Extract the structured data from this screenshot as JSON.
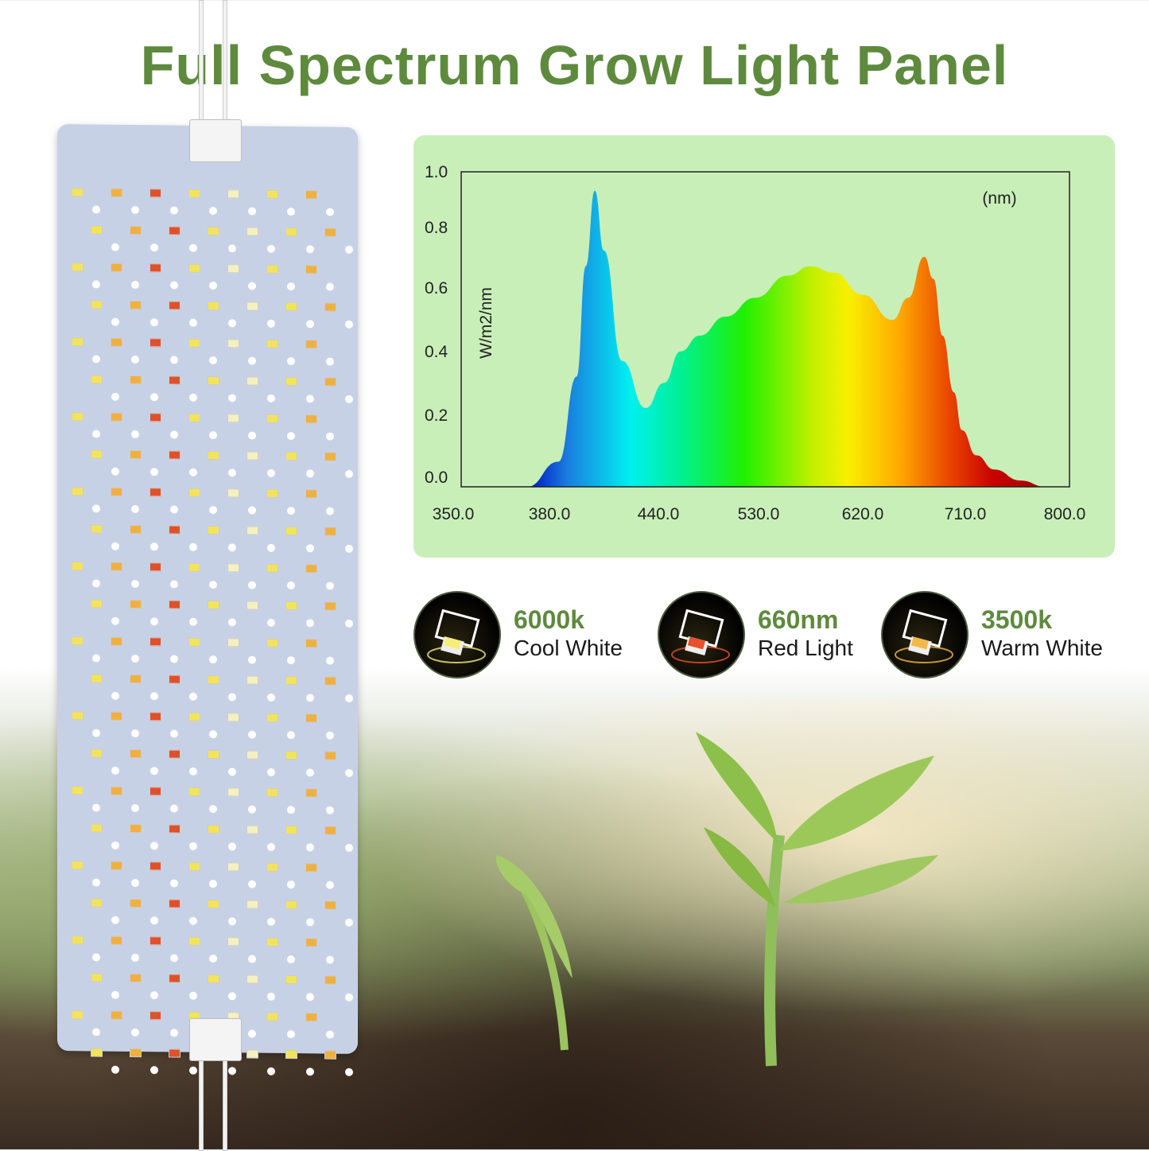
{
  "title": "Full Spectrum Grow Light Panel",
  "chart_data": {
    "type": "area",
    "ylabel": "W/m2/nm",
    "xunit_label": "(nm)",
    "x_ticks": [
      "350.0",
      "380.0",
      "440.0",
      "530.0",
      "620.0",
      "710.0",
      "800.0"
    ],
    "y_ticks": [
      "0.0",
      "0.2",
      "0.4",
      "0.6",
      "0.8",
      "1.0"
    ],
    "xlim": [
      350,
      800
    ],
    "ylim": [
      0,
      1.0
    ],
    "x_scale": "irregular (evenly spaced ticks)",
    "grid": false,
    "fill": "visible-spectrum gradient",
    "x": [
      373,
      385,
      395,
      400,
      405,
      410,
      420,
      433,
      445,
      460,
      477,
      500,
      527,
      555,
      575,
      595,
      620,
      646,
      660,
      674,
      682,
      690,
      700,
      707,
      720,
      736,
      760,
      783
    ],
    "y": [
      0.0,
      0.08,
      0.35,
      0.7,
      0.94,
      0.75,
      0.4,
      0.25,
      0.33,
      0.43,
      0.48,
      0.54,
      0.6,
      0.67,
      0.7,
      0.68,
      0.61,
      0.53,
      0.6,
      0.73,
      0.66,
      0.48,
      0.3,
      0.18,
      0.1,
      0.055,
      0.02,
      0.0
    ]
  },
  "led_types": [
    {
      "value": "6000k",
      "name": "Cool White",
      "color": "#f5ef7a"
    },
    {
      "value": "660nm",
      "name": "Red Light",
      "color": "#e8502a"
    },
    {
      "value": "3500k",
      "name": "Warm White",
      "color": "#f3b84a"
    }
  ],
  "colors": {
    "title": "#5e8a3e",
    "chart_bg": "#c8efb8",
    "panel": "#c7d1e6"
  }
}
